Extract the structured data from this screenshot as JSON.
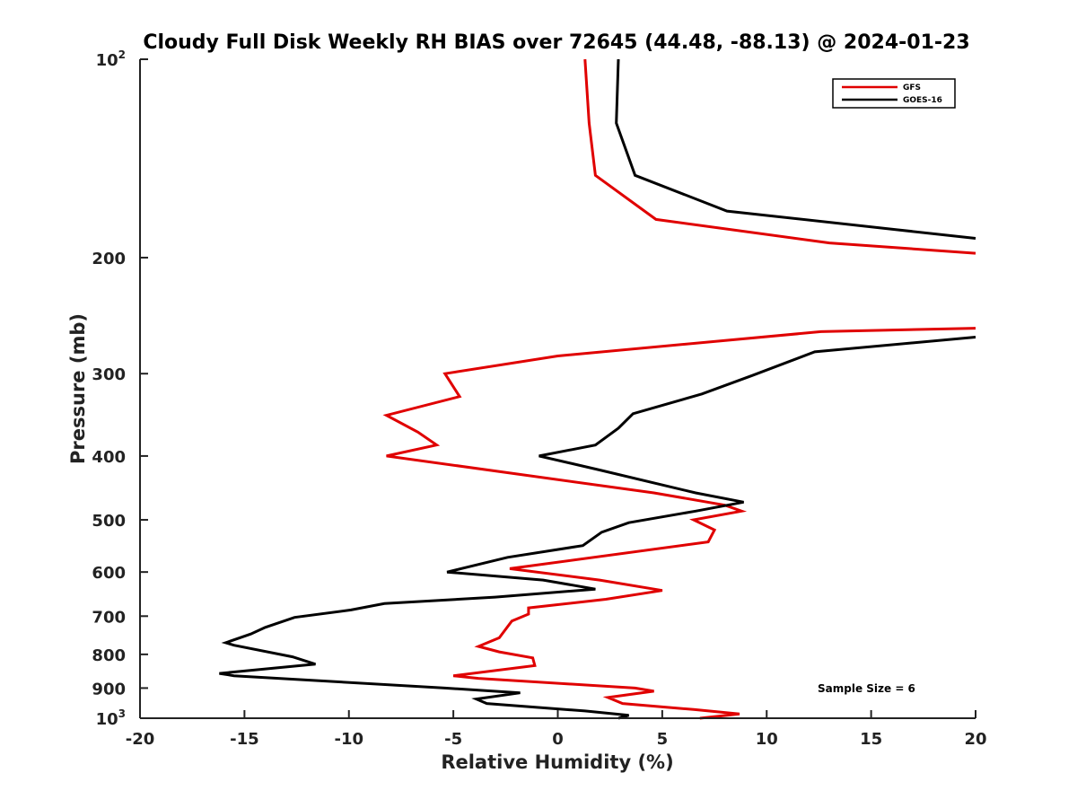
{
  "chart_data": {
    "type": "line",
    "title": "Cloudy Full Disk Weekly RH BIAS over 72645 (44.48, -88.13) @ 2024-01-23",
    "xlabel": "Relative Humidity (%)",
    "ylabel": "Pressure (mb)",
    "xlim": [
      -20,
      20
    ],
    "ylim": [
      100,
      1000
    ],
    "y_scale": "log",
    "y_reversed": true,
    "grid": false,
    "legend_position": "top-right",
    "x_ticks": [
      -20,
      -15,
      -10,
      -5,
      0,
      5,
      10,
      15,
      20
    ],
    "x_tick_labels": [
      "-20",
      "-15",
      "-10",
      "-5",
      "0",
      "5",
      "10",
      "15",
      "20"
    ],
    "y_ticks": [
      100,
      200,
      300,
      400,
      500,
      600,
      700,
      800,
      900,
      1000
    ],
    "y_tick_labels": [
      {
        "base": "10",
        "exp": "2"
      },
      {
        "base": "200",
        "exp": ""
      },
      {
        "base": "300",
        "exp": ""
      },
      {
        "base": "400",
        "exp": ""
      },
      {
        "base": "500",
        "exp": ""
      },
      {
        "base": "600",
        "exp": ""
      },
      {
        "base": "700",
        "exp": ""
      },
      {
        "base": "800",
        "exp": ""
      },
      {
        "base": "900",
        "exp": ""
      },
      {
        "base": "10",
        "exp": "3"
      }
    ],
    "annotation": "Sample Size = 6",
    "series": [
      {
        "name": "GFS",
        "color": "#e00000",
        "points": [
          [
            1.3,
            100
          ],
          [
            1.5,
            125
          ],
          [
            1.8,
            150
          ],
          [
            4.7,
            175
          ],
          [
            13.0,
            190
          ],
          [
            20.0,
            197
          ],
          [
            null,
            null
          ],
          [
            20.0,
            256
          ],
          [
            12.6,
            259
          ],
          [
            0.0,
            282
          ],
          [
            -5.4,
            300
          ],
          [
            -4.7,
            325
          ],
          [
            -8.2,
            347
          ],
          [
            -6.7,
            368
          ],
          [
            -5.8,
            385
          ],
          [
            -8.2,
            400
          ],
          [
            4.6,
            455
          ],
          [
            8.0,
            475
          ],
          [
            8.8,
            485
          ],
          [
            6.5,
            500
          ],
          [
            7.5,
            518
          ],
          [
            7.2,
            540
          ],
          [
            -2.3,
            593
          ],
          [
            2.0,
            617
          ],
          [
            5.0,
            640
          ],
          [
            2.3,
            660
          ],
          [
            -1.4,
            680
          ],
          [
            -1.4,
            695
          ],
          [
            -2.2,
            712
          ],
          [
            -2.8,
            755
          ],
          [
            -3.8,
            778
          ],
          [
            -2.8,
            793
          ],
          [
            -1.2,
            810
          ],
          [
            -1.1,
            832
          ],
          [
            -5.0,
            862
          ],
          [
            -3.8,
            870
          ],
          [
            3.7,
            900
          ],
          [
            4.6,
            910
          ],
          [
            2.4,
            930
          ],
          [
            3.1,
            950
          ],
          [
            6.5,
            970
          ],
          [
            8.7,
            985
          ],
          [
            6.8,
            1000
          ]
        ]
      },
      {
        "name": "GOES-16",
        "color": "#000000",
        "points": [
          [
            2.9,
            100
          ],
          [
            2.8,
            125
          ],
          [
            3.7,
            150
          ],
          [
            8.1,
            170
          ],
          [
            20.0,
            187
          ],
          [
            null,
            null
          ],
          [
            20.0,
            264
          ],
          [
            12.3,
            278
          ],
          [
            9.3,
            302
          ],
          [
            6.9,
            322
          ],
          [
            3.6,
            345
          ],
          [
            2.9,
            363
          ],
          [
            1.8,
            385
          ],
          [
            -0.9,
            400
          ],
          [
            2.0,
            420
          ],
          [
            6.6,
            455
          ],
          [
            8.9,
            470
          ],
          [
            6.6,
            485
          ],
          [
            3.4,
            505
          ],
          [
            2.1,
            522
          ],
          [
            1.2,
            547
          ],
          [
            -2.4,
            570
          ],
          [
            -5.3,
            600
          ],
          [
            -0.7,
            617
          ],
          [
            1.8,
            637
          ],
          [
            -3.0,
            655
          ],
          [
            -8.3,
            670
          ],
          [
            -9.9,
            685
          ],
          [
            -12.6,
            703
          ],
          [
            -14.0,
            728
          ],
          [
            -14.7,
            745
          ],
          [
            -15.9,
            768
          ],
          [
            -15.5,
            775
          ],
          [
            -12.7,
            807
          ],
          [
            -11.6,
            828
          ],
          [
            -16.2,
            855
          ],
          [
            -15.5,
            862
          ],
          [
            -5.4,
            900
          ],
          [
            -1.8,
            915
          ],
          [
            -3.9,
            935
          ],
          [
            -3.4,
            950
          ],
          [
            1.3,
            975
          ],
          [
            3.4,
            990
          ],
          [
            2.9,
            1000
          ]
        ]
      }
    ]
  }
}
